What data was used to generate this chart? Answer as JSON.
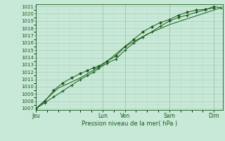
{
  "bg_color": "#c8e8d8",
  "plot_bg_color": "#c8e8d8",
  "grid_color": "#a0c8b0",
  "grid_minor_color": "#b8dcc8",
  "line_color": "#1a5c1a",
  "marker_color": "#1a5c1a",
  "ylabel_min": 1007,
  "ylabel_max": 1021,
  "xlabel": "Pression niveau de la mer( hPa )",
  "x_ticks_labels": [
    "Jeu",
    "Lun",
    "Ven",
    "Sam",
    "Dim"
  ],
  "x_ticks_pos": [
    0,
    3.0,
    4.0,
    6.0,
    8.0
  ],
  "xlim_min": 0,
  "xlim_max": 8.4,
  "series1_x": [
    0,
    0.4,
    0.8,
    1.2,
    1.6,
    2.0,
    2.3,
    2.6,
    2.8,
    3.2,
    3.6,
    4.0,
    4.4,
    4.8,
    5.2,
    5.6,
    6.0,
    6.4,
    6.8,
    7.2,
    7.6,
    8.0,
    8.3
  ],
  "series1_y": [
    1007,
    1007.8,
    1008.6,
    1009.4,
    1010.2,
    1011.0,
    1011.5,
    1012.0,
    1012.5,
    1013.2,
    1013.8,
    1015.0,
    1016.0,
    1016.8,
    1017.5,
    1018.3,
    1019.0,
    1019.5,
    1019.8,
    1020.2,
    1020.5,
    1021.0,
    1020.8
  ],
  "series2_x": [
    0,
    0.4,
    0.8,
    1.2,
    1.6,
    2.0,
    2.3,
    2.6,
    2.8,
    3.2,
    3.6,
    4.0,
    4.4,
    4.8,
    5.2,
    5.6,
    6.0,
    6.4,
    6.8,
    7.2,
    7.6,
    8.0
  ],
  "series2_y": [
    1007,
    1008.0,
    1009.5,
    1010.5,
    1011.2,
    1011.8,
    1012.2,
    1012.6,
    1012.8,
    1013.5,
    1014.2,
    1015.5,
    1016.5,
    1017.5,
    1018.2,
    1018.8,
    1019.2,
    1019.8,
    1020.2,
    1020.5,
    1020.6,
    1020.8
  ],
  "series3_x": [
    0,
    1.0,
    2.0,
    3.0,
    4.0,
    5.0,
    6.0,
    7.0,
    8.0,
    8.3
  ],
  "series3_y": [
    1007,
    1009.8,
    1011.2,
    1013.0,
    1015.5,
    1017.2,
    1018.5,
    1019.5,
    1020.5,
    1020.8
  ]
}
